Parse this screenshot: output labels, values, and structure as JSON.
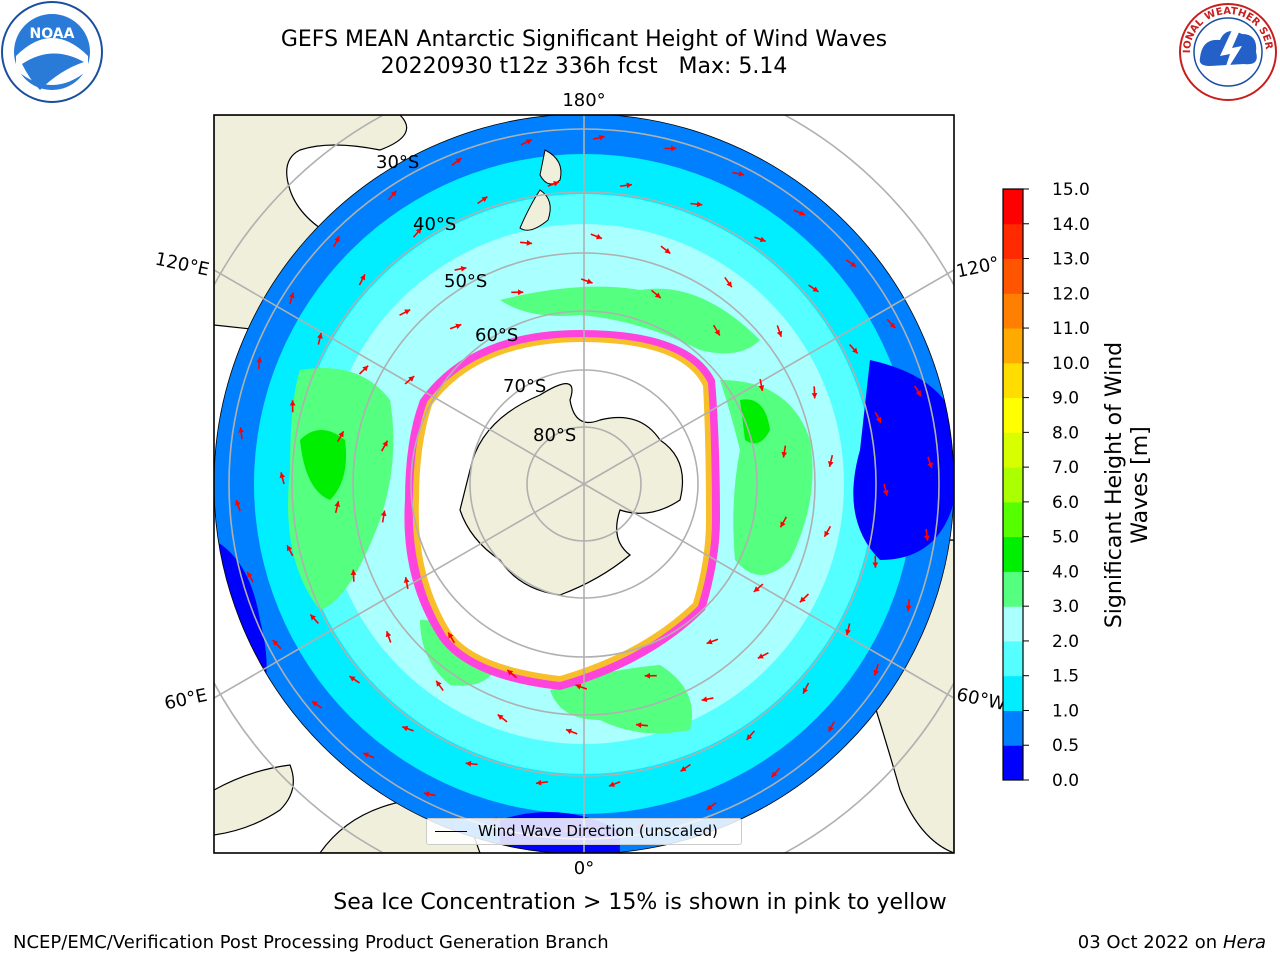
{
  "header": {
    "title_line1": "GEFS MEAN Antarctic Significant Height of Wind Waves",
    "title_line2": "20220930 t12z 336h fcst   Max: 5.14"
  },
  "logos": {
    "noaa": {
      "text": "NOAA",
      "icon": "noaa-logo"
    },
    "nws": {
      "text": "NATIONAL WEATHER SERVICE",
      "icon": "nws-logo"
    }
  },
  "map": {
    "lon_labels": {
      "top": "180°",
      "bottom": "0°",
      "upper_left": "120°E",
      "lower_left": "60°E",
      "upper_right": "120°",
      "lower_right": "60°W"
    },
    "lat_labels": [
      "30°S",
      "40°S",
      "50°S",
      "60°S",
      "70°S",
      "80°S"
    ],
    "legend_text": "Wind Wave Direction (unscaled)",
    "colors": {
      "land": "#efefdb",
      "ice_pink": "#ff44dd",
      "ice_yellow": "#f7c02a",
      "grid": "#b0b0b0",
      "arrow": "#ff0000"
    }
  },
  "colorbar": {
    "label": "Significant Height of Wind Waves [m]",
    "ticks": [
      "0.0",
      "0.5",
      "1.0",
      "1.5",
      "2.0",
      "3.0",
      "4.0",
      "5.0",
      "6.0",
      "7.0",
      "8.0",
      "9.0",
      "10.0",
      "11.0",
      "12.0",
      "13.0",
      "14.0",
      "15.0"
    ],
    "colors": [
      "#0000ff",
      "#0080ff",
      "#00eeff",
      "#55ffff",
      "#aaffff",
      "#55ff80",
      "#00ee00",
      "#55ff00",
      "#aaff00",
      "#d8ff00",
      "#ffff00",
      "#ffdd00",
      "#ffaa00",
      "#ff8000",
      "#ff5500",
      "#ff2a00",
      "#ff0000"
    ]
  },
  "footer": {
    "note": "Sea Ice Concentration > 15% is shown in pink to yellow",
    "left": "NCEP/EMC/Verification Post Processing Product Generation Branch",
    "right_date": "03 Oct 2022 on ",
    "right_machine": "Hera"
  }
}
